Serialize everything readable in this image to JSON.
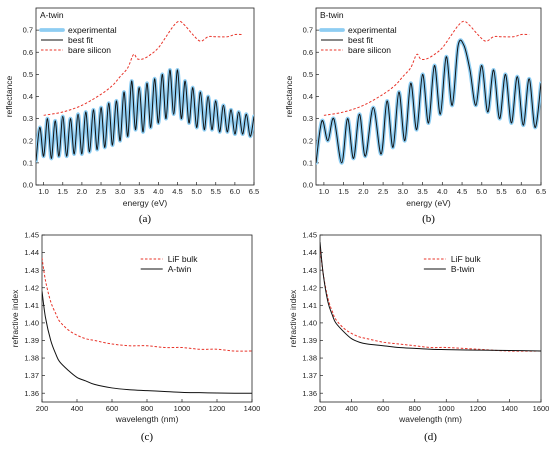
{
  "chart_data": [
    {
      "id": "a",
      "type": "line",
      "title": "A-twin",
      "caption": "(a)",
      "xlabel": "energy (eV)",
      "ylabel": "reflectance",
      "xlim": [
        0.8,
        6.5
      ],
      "ylim": [
        0.0,
        0.8
      ],
      "xticks": [
        "1.0",
        "1.5",
        "2.0",
        "2.5",
        "3.0",
        "3.5",
        "4.0",
        "4.5",
        "5.0",
        "5.5",
        "6.0",
        "6.5"
      ],
      "yticks": [
        "0.0",
        "0.1",
        "0.2",
        "0.3",
        "0.4",
        "0.5",
        "0.6",
        "0.7"
      ],
      "legend_position": "top-left",
      "series": [
        {
          "name": "experimental",
          "color": "#8ecdf2",
          "style": "thick",
          "x": [
            0.8,
            0.9,
            1.0,
            1.1,
            1.2,
            1.3,
            1.4,
            1.5,
            1.6,
            1.7,
            1.8,
            1.9,
            2.0,
            2.1,
            2.2,
            2.3,
            2.4,
            2.5,
            2.6,
            2.7,
            2.8,
            2.9,
            3.0,
            3.1,
            3.2,
            3.3,
            3.4,
            3.5,
            3.6,
            3.7,
            3.8,
            3.9,
            4.0,
            4.1,
            4.2,
            4.3,
            4.4,
            4.5,
            4.6,
            4.7,
            4.8,
            4.9,
            5.0,
            5.1,
            5.2,
            5.3,
            5.4,
            5.5,
            5.6,
            5.7,
            5.8,
            5.9,
            6.0,
            6.1,
            6.2,
            6.3,
            6.4,
            6.5
          ],
          "y": [
            0.11,
            0.26,
            0.13,
            0.3,
            0.12,
            0.29,
            0.13,
            0.31,
            0.13,
            0.3,
            0.14,
            0.32,
            0.14,
            0.33,
            0.15,
            0.34,
            0.16,
            0.35,
            0.17,
            0.37,
            0.18,
            0.38,
            0.2,
            0.42,
            0.22,
            0.47,
            0.25,
            0.44,
            0.24,
            0.46,
            0.26,
            0.48,
            0.28,
            0.5,
            0.3,
            0.52,
            0.32,
            0.52,
            0.3,
            0.47,
            0.28,
            0.44,
            0.26,
            0.42,
            0.25,
            0.4,
            0.25,
            0.38,
            0.24,
            0.36,
            0.24,
            0.34,
            0.23,
            0.33,
            0.23,
            0.32,
            0.22,
            0.31
          ]
        },
        {
          "name": "best fit",
          "color": "#111111",
          "style": "solid",
          "x": [
            0.8,
            0.9,
            1.0,
            1.1,
            1.2,
            1.3,
            1.4,
            1.5,
            1.6,
            1.7,
            1.8,
            1.9,
            2.0,
            2.1,
            2.2,
            2.3,
            2.4,
            2.5,
            2.6,
            2.7,
            2.8,
            2.9,
            3.0,
            3.1,
            3.2,
            3.3,
            3.4,
            3.5,
            3.6,
            3.7,
            3.8,
            3.9,
            4.0,
            4.1,
            4.2,
            4.3,
            4.4,
            4.5,
            4.6,
            4.7,
            4.8,
            4.9,
            5.0,
            5.1,
            5.2,
            5.3,
            5.4,
            5.5,
            5.6,
            5.7,
            5.8,
            5.9,
            6.0,
            6.1,
            6.2,
            6.3,
            6.4,
            6.5
          ],
          "y": [
            0.11,
            0.26,
            0.13,
            0.3,
            0.12,
            0.29,
            0.13,
            0.31,
            0.13,
            0.3,
            0.14,
            0.32,
            0.14,
            0.33,
            0.15,
            0.34,
            0.16,
            0.35,
            0.17,
            0.37,
            0.18,
            0.38,
            0.2,
            0.42,
            0.22,
            0.47,
            0.25,
            0.44,
            0.24,
            0.46,
            0.26,
            0.48,
            0.28,
            0.5,
            0.3,
            0.52,
            0.32,
            0.52,
            0.3,
            0.47,
            0.28,
            0.44,
            0.26,
            0.42,
            0.25,
            0.4,
            0.25,
            0.38,
            0.24,
            0.36,
            0.24,
            0.34,
            0.23,
            0.33,
            0.23,
            0.32,
            0.22,
            0.31
          ]
        },
        {
          "name": "bare silicon",
          "color": "#e8342a",
          "style": "dashed",
          "x": [
            1.0,
            1.5,
            2.0,
            2.5,
            2.8,
            3.0,
            3.2,
            3.35,
            3.45,
            3.6,
            3.8,
            4.0,
            4.2,
            4.4,
            4.55,
            4.7,
            4.9,
            5.1,
            5.3,
            5.5,
            5.8,
            6.0,
            6.2
          ],
          "y": [
            0.315,
            0.33,
            0.36,
            0.41,
            0.45,
            0.49,
            0.53,
            0.59,
            0.57,
            0.57,
            0.59,
            0.62,
            0.67,
            0.72,
            0.74,
            0.72,
            0.68,
            0.65,
            0.67,
            0.67,
            0.67,
            0.68,
            0.68
          ]
        }
      ]
    },
    {
      "id": "b",
      "type": "line",
      "title": "B-twin",
      "caption": "(b)",
      "xlabel": "energy (eV)",
      "ylabel": "reflectance",
      "xlim": [
        0.8,
        6.5
      ],
      "ylim": [
        0.0,
        0.8
      ],
      "xticks": [
        "1.0",
        "1.5",
        "2.0",
        "2.5",
        "3.0",
        "3.5",
        "4.0",
        "4.5",
        "5.0",
        "5.5",
        "6.0",
        "6.5"
      ],
      "yticks": [
        "0.0",
        "0.1",
        "0.2",
        "0.3",
        "0.4",
        "0.5",
        "0.6",
        "0.7"
      ],
      "legend_position": "top-left",
      "series": [
        {
          "name": "experimental",
          "color": "#8ecdf2",
          "style": "thick",
          "x": [
            0.8,
            0.95,
            1.1,
            1.25,
            1.45,
            1.6,
            1.75,
            1.9,
            2.05,
            2.25,
            2.45,
            2.6,
            2.75,
            2.9,
            3.05,
            3.2,
            3.35,
            3.5,
            3.65,
            3.8,
            3.95,
            4.1,
            4.25,
            4.4,
            4.55,
            4.7,
            4.85,
            5.0,
            5.15,
            5.3,
            5.45,
            5.6,
            5.75,
            5.9,
            6.05,
            6.2,
            6.35,
            6.5
          ],
          "y": [
            0.1,
            0.29,
            0.2,
            0.3,
            0.1,
            0.3,
            0.12,
            0.32,
            0.13,
            0.35,
            0.14,
            0.38,
            0.17,
            0.42,
            0.2,
            0.46,
            0.25,
            0.5,
            0.28,
            0.54,
            0.32,
            0.58,
            0.36,
            0.63,
            0.63,
            0.52,
            0.36,
            0.54,
            0.33,
            0.52,
            0.3,
            0.5,
            0.28,
            0.49,
            0.27,
            0.48,
            0.26,
            0.46
          ]
        },
        {
          "name": "best fit",
          "color": "#111111",
          "style": "solid",
          "x": [
            0.8,
            0.95,
            1.1,
            1.25,
            1.45,
            1.6,
            1.75,
            1.9,
            2.05,
            2.25,
            2.45,
            2.6,
            2.75,
            2.9,
            3.05,
            3.2,
            3.35,
            3.5,
            3.65,
            3.8,
            3.95,
            4.1,
            4.25,
            4.4,
            4.55,
            4.7,
            4.85,
            5.0,
            5.15,
            5.3,
            5.45,
            5.6,
            5.75,
            5.9,
            6.05,
            6.2,
            6.35,
            6.5
          ],
          "y": [
            0.1,
            0.29,
            0.2,
            0.3,
            0.1,
            0.3,
            0.12,
            0.32,
            0.13,
            0.35,
            0.14,
            0.38,
            0.17,
            0.42,
            0.2,
            0.46,
            0.25,
            0.5,
            0.28,
            0.54,
            0.32,
            0.58,
            0.36,
            0.63,
            0.63,
            0.52,
            0.36,
            0.54,
            0.33,
            0.52,
            0.3,
            0.5,
            0.28,
            0.49,
            0.27,
            0.48,
            0.26,
            0.46
          ]
        },
        {
          "name": "bare silicon",
          "color": "#e8342a",
          "style": "dashed",
          "x": [
            1.0,
            1.5,
            2.0,
            2.5,
            2.8,
            3.0,
            3.2,
            3.35,
            3.45,
            3.6,
            3.8,
            4.0,
            4.2,
            4.4,
            4.55,
            4.7,
            4.9,
            5.1,
            5.3,
            5.5,
            5.8,
            6.0,
            6.2
          ],
          "y": [
            0.315,
            0.33,
            0.36,
            0.41,
            0.45,
            0.49,
            0.53,
            0.59,
            0.57,
            0.57,
            0.59,
            0.62,
            0.67,
            0.72,
            0.74,
            0.72,
            0.68,
            0.65,
            0.67,
            0.67,
            0.67,
            0.68,
            0.68
          ]
        }
      ]
    },
    {
      "id": "c",
      "type": "line",
      "title": "",
      "caption": "(c)",
      "xlabel": "wavelength (nm)",
      "ylabel": "refractive index",
      "xlim": [
        200,
        1400
      ],
      "ylim": [
        1.355,
        1.45
      ],
      "xticks": [
        "200",
        "400",
        "600",
        "800",
        "1000",
        "1200",
        "1400"
      ],
      "yticks": [
        "1.36",
        "1.37",
        "1.38",
        "1.39",
        "1.40",
        "1.41",
        "1.42",
        "1.43",
        "1.44",
        "1.45"
      ],
      "legend_position": "top-right",
      "series": [
        {
          "name": "LiF bulk",
          "color": "#e8342a",
          "style": "dashed",
          "x": [
            200,
            220,
            250,
            280,
            300,
            350,
            400,
            450,
            500,
            600,
            700,
            800,
            900,
            1000,
            1100,
            1200,
            1300,
            1400
          ],
          "y": [
            1.437,
            1.424,
            1.412,
            1.405,
            1.401,
            1.396,
            1.393,
            1.391,
            1.39,
            1.388,
            1.387,
            1.387,
            1.386,
            1.386,
            1.385,
            1.385,
            1.384,
            1.384
          ]
        },
        {
          "name": "A-twin",
          "color": "#111111",
          "style": "solid",
          "x": [
            200,
            220,
            250,
            280,
            300,
            350,
            400,
            450,
            500,
            600,
            700,
            800,
            900,
            1000,
            1100,
            1200,
            1300,
            1400
          ],
          "y": [
            1.418,
            1.403,
            1.39,
            1.382,
            1.378,
            1.373,
            1.369,
            1.367,
            1.365,
            1.363,
            1.362,
            1.3615,
            1.361,
            1.3605,
            1.3603,
            1.3601,
            1.36,
            1.36
          ]
        }
      ]
    },
    {
      "id": "d",
      "type": "line",
      "title": "",
      "caption": "(d)",
      "xlabel": "wavelength (nm)",
      "ylabel": "refractive index",
      "xlim": [
        200,
        1600
      ],
      "ylim": [
        1.355,
        1.45
      ],
      "xticks": [
        "200",
        "400",
        "600",
        "800",
        "1000",
        "1200",
        "1400",
        "1600"
      ],
      "yticks": [
        "1.36",
        "1.37",
        "1.38",
        "1.39",
        "1.40",
        "1.41",
        "1.42",
        "1.43",
        "1.44",
        "1.45"
      ],
      "legend_position": "top-right",
      "series": [
        {
          "name": "LiF bulk",
          "color": "#e8342a",
          "style": "dashed",
          "x": [
            200,
            220,
            250,
            280,
            300,
            350,
            400,
            450,
            500,
            600,
            700,
            800,
            900,
            1000,
            1200,
            1400,
            1600
          ],
          "y": [
            1.443,
            1.428,
            1.414,
            1.406,
            1.402,
            1.397,
            1.394,
            1.392,
            1.391,
            1.389,
            1.388,
            1.387,
            1.386,
            1.386,
            1.385,
            1.384,
            1.384
          ]
        },
        {
          "name": "B-twin",
          "color": "#111111",
          "style": "solid",
          "x": [
            200,
            220,
            250,
            280,
            300,
            350,
            400,
            450,
            500,
            600,
            700,
            800,
            900,
            1000,
            1200,
            1400,
            1600
          ],
          "y": [
            1.446,
            1.428,
            1.412,
            1.404,
            1.4,
            1.395,
            1.391,
            1.389,
            1.388,
            1.387,
            1.386,
            1.3855,
            1.385,
            1.3848,
            1.3845,
            1.3843,
            1.384
          ]
        }
      ]
    }
  ]
}
